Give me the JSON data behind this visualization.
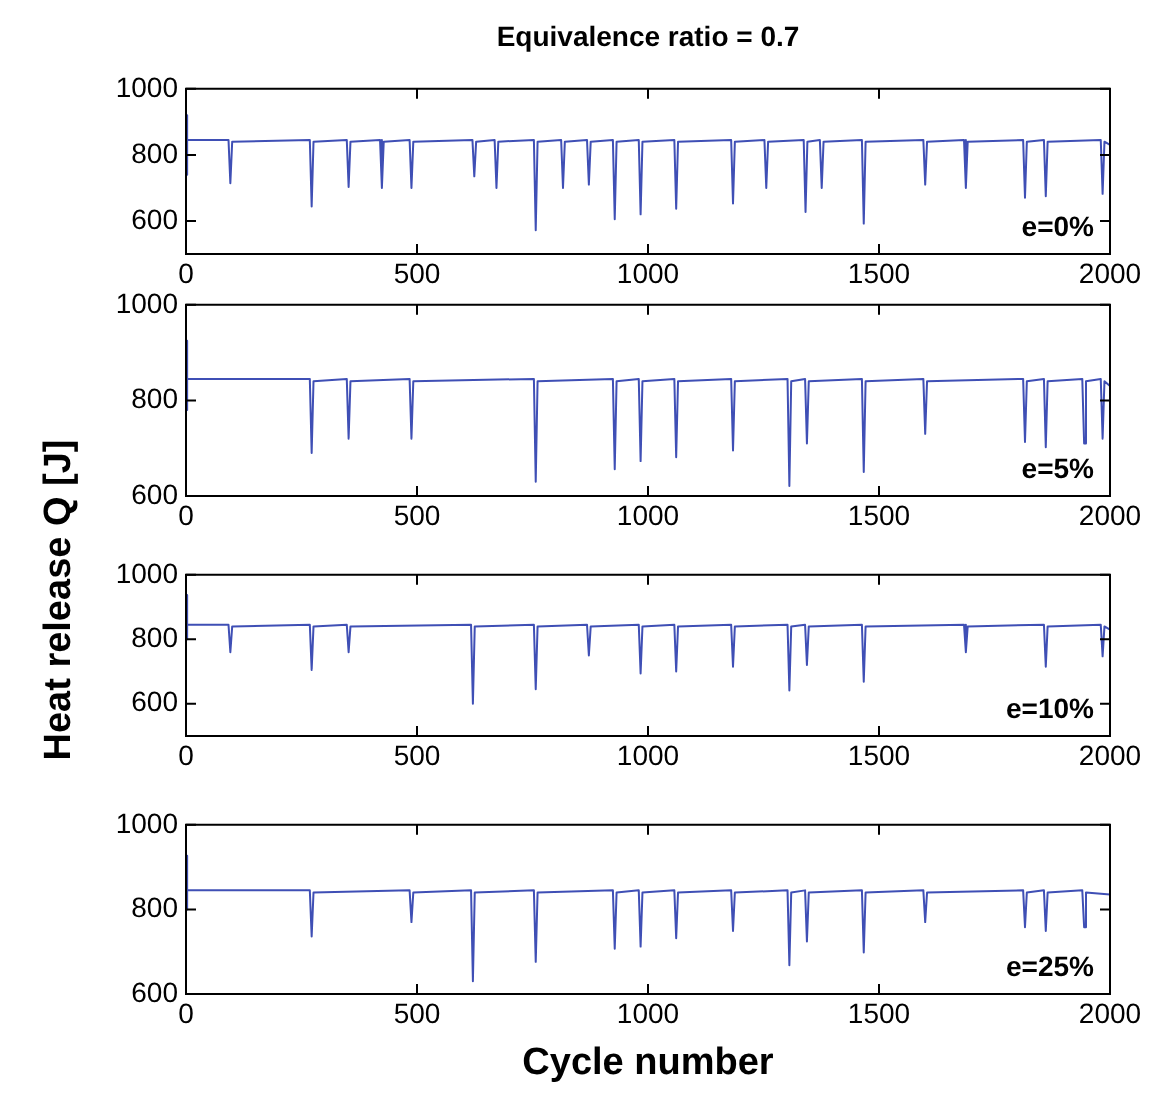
{
  "chart_data": [
    {
      "type": "line",
      "title": "Equivalence ratio = 0.7",
      "ylabel": "Heat release Q [J]",
      "annotations": [
        "e=0%"
      ],
      "xlim": [
        0,
        2000
      ],
      "xticks": [
        0,
        500,
        1000,
        1500,
        2000
      ],
      "ylim": [
        500,
        1000
      ],
      "yticks": [
        600,
        800,
        1000
      ],
      "grid": false,
      "legend": false,
      "marker": "none",
      "line_style": "solid",
      "series": [
        {
          "color": "#3f4fb5",
          "x": [
            0,
            1,
            4,
            92,
            96,
            100,
            268,
            272,
            276,
            348,
            352,
            356,
            420,
            424,
            428,
            484,
            488,
            492,
            620,
            624,
            628,
            668,
            672,
            676,
            753,
            757,
            761,
            812,
            816,
            820,
            868,
            872,
            876,
            924,
            928,
            932,
            980,
            984,
            988,
            1057,
            1061,
            1065,
            1180,
            1184,
            1188,
            1252,
            1256,
            1260,
            1337,
            1341,
            1345,
            1372,
            1376,
            1380,
            1463,
            1467,
            1471,
            1596,
            1600,
            1604,
            1684,
            1688,
            1692,
            1812,
            1816,
            1820,
            1857,
            1861,
            1865,
            1980,
            1984,
            1988,
            2000
          ],
          "values": [
            920,
            740,
            845,
            845,
            714,
            840,
            845,
            644,
            840,
            845,
            703,
            840,
            845,
            700,
            840,
            845,
            700,
            840,
            845,
            735,
            840,
            845,
            700,
            840,
            845,
            572,
            840,
            845,
            700,
            840,
            845,
            710,
            840,
            845,
            605,
            840,
            845,
            620,
            840,
            845,
            637,
            840,
            845,
            653,
            840,
            845,
            700,
            840,
            845,
            627,
            840,
            845,
            700,
            840,
            845,
            592,
            840,
            845,
            710,
            840,
            845,
            700,
            840,
            845,
            670,
            840,
            845,
            675,
            840,
            845,
            682,
            840,
            830
          ]
        }
      ]
    },
    {
      "type": "line",
      "annotations": [
        "e=5%"
      ],
      "xlim": [
        0,
        2000
      ],
      "xticks": [
        0,
        500,
        1000,
        1500,
        2000
      ],
      "ylim": [
        600,
        1000
      ],
      "yticks": [
        600,
        800,
        1000
      ],
      "grid": false,
      "legend": false,
      "marker": "none",
      "line_style": "solid",
      "series": [
        {
          "color": "#3f4fb5",
          "x": [
            0,
            1,
            4,
            268,
            272,
            276,
            348,
            352,
            356,
            484,
            488,
            492,
            753,
            757,
            761,
            924,
            928,
            932,
            980,
            984,
            988,
            1057,
            1061,
            1065,
            1180,
            1184,
            1188,
            1302,
            1306,
            1310,
            1340,
            1344,
            1348,
            1463,
            1467,
            1471,
            1596,
            1600,
            1604,
            1812,
            1816,
            1820,
            1857,
            1861,
            1865,
            1940,
            1944,
            1948,
            1980,
            1984,
            1988,
            2000
          ],
          "values": [
            925,
            780,
            845,
            845,
            690,
            840,
            845,
            720,
            840,
            845,
            720,
            840,
            845,
            630,
            840,
            845,
            656,
            840,
            845,
            673,
            840,
            845,
            681,
            840,
            845,
            695,
            840,
            845,
            621,
            840,
            845,
            710,
            840,
            845,
            650,
            840,
            845,
            730,
            840,
            845,
            713,
            840,
            845,
            702,
            840,
            845,
            710,
            840,
            845,
            720,
            840,
            830
          ]
        }
      ]
    },
    {
      "type": "line",
      "annotations": [
        "e=10%"
      ],
      "xlim": [
        0,
        2000
      ],
      "xticks": [
        0,
        500,
        1000,
        1500,
        2000
      ],
      "ylim": [
        500,
        1000
      ],
      "yticks": [
        600,
        800,
        1000
      ],
      "grid": false,
      "legend": false,
      "marker": "none",
      "line_style": "solid",
      "series": [
        {
          "color": "#3f4fb5",
          "x": [
            0,
            1,
            4,
            92,
            96,
            100,
            268,
            272,
            276,
            348,
            352,
            356,
            617,
            621,
            625,
            753,
            757,
            761,
            868,
            872,
            876,
            980,
            984,
            988,
            1057,
            1061,
            1065,
            1180,
            1184,
            1188,
            1302,
            1306,
            1310,
            1340,
            1344,
            1348,
            1463,
            1467,
            1471,
            1684,
            1688,
            1692,
            1857,
            1861,
            1865,
            1980,
            1984,
            1988,
            2000
          ],
          "values": [
            937,
            800,
            845,
            845,
            760,
            840,
            845,
            705,
            840,
            845,
            760,
            840,
            845,
            600,
            840,
            845,
            645,
            840,
            845,
            750,
            840,
            845,
            694,
            840,
            845,
            700,
            840,
            845,
            715,
            840,
            845,
            641,
            840,
            845,
            720,
            840,
            845,
            668,
            840,
            845,
            760,
            840,
            845,
            715,
            840,
            845,
            747,
            840,
            830
          ]
        }
      ]
    },
    {
      "type": "line",
      "xlabel": "Cycle number",
      "annotations": [
        "e=25%"
      ],
      "xlim": [
        0,
        2000
      ],
      "xticks": [
        0,
        500,
        1000,
        1500,
        2000
      ],
      "ylim": [
        600,
        1000
      ],
      "yticks": [
        600,
        800,
        1000
      ],
      "grid": false,
      "legend": false,
      "marker": "none",
      "line_style": "solid",
      "series": [
        {
          "color": "#3f4fb5",
          "x": [
            0,
            1,
            4,
            268,
            272,
            276,
            484,
            488,
            492,
            617,
            621,
            625,
            753,
            757,
            761,
            924,
            928,
            932,
            980,
            984,
            988,
            1057,
            1061,
            1065,
            1180,
            1184,
            1188,
            1302,
            1306,
            1310,
            1340,
            1344,
            1348,
            1463,
            1467,
            1471,
            1596,
            1600,
            1604,
            1812,
            1816,
            1820,
            1857,
            1861,
            1865,
            1940,
            1944,
            1948,
            2000
          ],
          "values": [
            927,
            800,
            845,
            845,
            736,
            840,
            845,
            770,
            840,
            845,
            630,
            840,
            845,
            676,
            840,
            845,
            707,
            840,
            845,
            712,
            840,
            845,
            732,
            840,
            845,
            749,
            840,
            845,
            668,
            840,
            845,
            724,
            840,
            845,
            698,
            840,
            845,
            770,
            840,
            845,
            758,
            840,
            845,
            749,
            840,
            845,
            758,
            840,
            835
          ]
        }
      ]
    }
  ]
}
